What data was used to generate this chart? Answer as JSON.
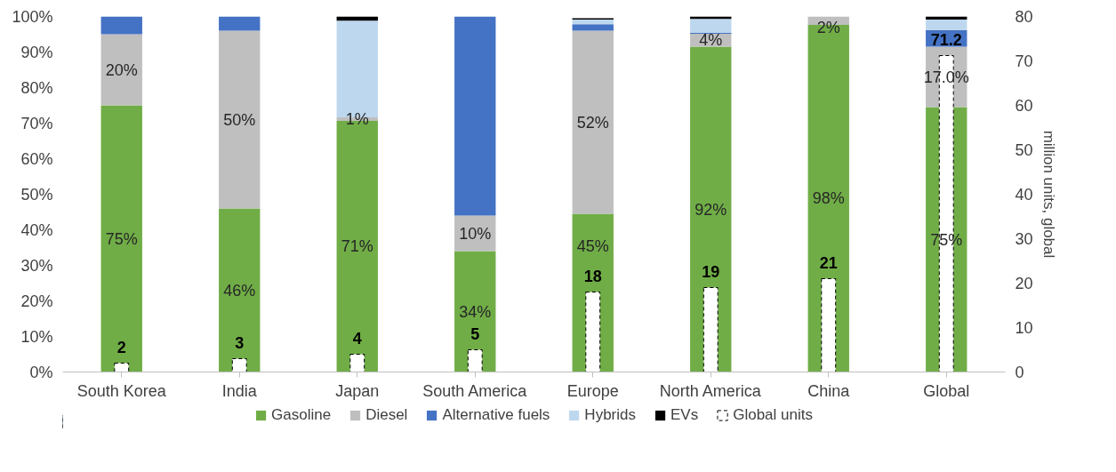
{
  "chart_data": {
    "type": "bar",
    "stacked": true,
    "categories": [
      "South Korea",
      "India",
      "Japan",
      "South America",
      "Europe",
      "North America",
      "China",
      "Global"
    ],
    "series": [
      {
        "name": "Gasoline",
        "color": "#70ad47",
        "values": [
          75,
          46,
          70.6,
          34,
          44.5,
          91.5,
          97.6,
          74.5
        ],
        "value_labels": [
          "75%",
          "46%",
          "71%",
          "34%",
          "45%",
          "92%",
          "98%",
          "75%"
        ]
      },
      {
        "name": "Diesel",
        "color": "#bfbfbf",
        "values": [
          20,
          50,
          1,
          10,
          51.5,
          3.6,
          2.4,
          17.0
        ],
        "value_labels": [
          "20%",
          "50%",
          "1%",
          "10%",
          "52%",
          "4%",
          "2%",
          "17.0%"
        ]
      },
      {
        "name": "Alternative fuels",
        "color": "#4472c4",
        "values": [
          5,
          4,
          0,
          56,
          1.8,
          0.3,
          0,
          4.7
        ]
      },
      {
        "name": "Hybrids",
        "color": "#bdd7ee",
        "values": [
          0,
          0,
          27.2,
          0,
          1.3,
          3.9,
          0,
          2.9
        ]
      },
      {
        "name": "EVs",
        "color": "#000000",
        "values": [
          0,
          0,
          1.2,
          0,
          0.4,
          0.7,
          0,
          0.9
        ]
      },
      {
        "name": "Global units",
        "color": "#ffffff",
        "axis": "y2",
        "line_style": "dashed",
        "values": [
          2,
          3,
          4,
          5,
          18,
          19,
          21,
          71.2
        ],
        "value_labels": [
          "2",
          "3",
          "4",
          "5",
          "18",
          "19",
          "21",
          "71.2"
        ]
      }
    ],
    "ylim": [
      0,
      100
    ],
    "yticks": [
      {
        "value": 0,
        "label": "0%"
      },
      {
        "value": 10,
        "label": "10%"
      },
      {
        "value": 20,
        "label": "20%"
      },
      {
        "value": 30,
        "label": "30%"
      },
      {
        "value": 40,
        "label": "40%"
      },
      {
        "value": 50,
        "label": "50%"
      },
      {
        "value": 60,
        "label": "60%"
      },
      {
        "value": 70,
        "label": "70%"
      },
      {
        "value": 80,
        "label": "80%"
      },
      {
        "value": 90,
        "label": "90%"
      },
      {
        "value": 100,
        "label": "100%"
      }
    ],
    "y2lim": [
      0,
      80
    ],
    "y2ticks": [
      0,
      10,
      20,
      30,
      40,
      50,
      60,
      70,
      80
    ],
    "y2label": "million units, global",
    "grid": false,
    "legend": "bottom"
  }
}
